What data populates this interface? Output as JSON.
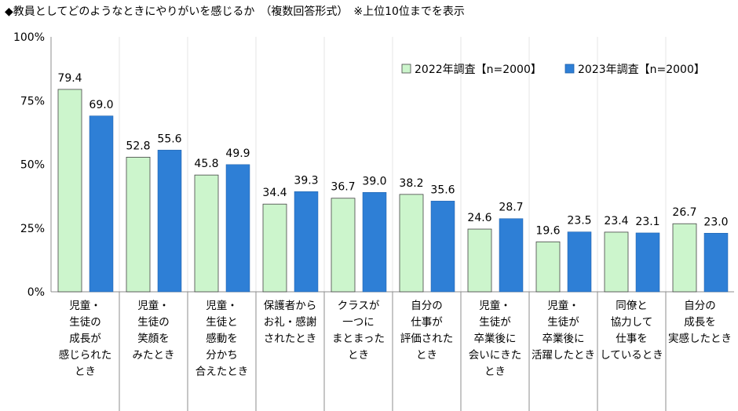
{
  "title": "◆教員としてどのようなときにやりがいを感じるか　（複数回答形式）　※上位10位までを表示",
  "chart_data": {
    "type": "bar",
    "title": "◆教員としてどのようなときにやりがいを感じるか　（複数回答形式）　※上位10位までを表示",
    "xlabel": "",
    "ylabel": "",
    "ylim": [
      0,
      100
    ],
    "yticks": [
      "0%",
      "25%",
      "50%",
      "75%",
      "100%"
    ],
    "ytick_values": [
      0,
      25,
      50,
      75,
      100
    ],
    "grid": "vertical separators only",
    "legend_position": "top-right",
    "categories": [
      "児童・\n生徒の\n成長が\n感じられた\nとき",
      "児童・\n生徒の\n笑顔を\nみたとき",
      "児童・\n生徒と\n感動を\n分かち\n合えたとき",
      "保護者から\nお礼・感謝\nされたとき",
      "クラスが\n一つに\nまとまった\nとき",
      "自分の\n仕事が\n評価された\nとき",
      "児童・\n生徒が\n卒業後に\n会いにきた\nとき",
      "児童・\n生徒が\n卒業後に\n活躍したとき",
      "同僚と\n協力して\n仕事を\nしているとき",
      "自分の\n成長を\n実感したとき"
    ],
    "series": [
      {
        "name": "2022年調査【n=2000】",
        "color": "#ccf5cc",
        "values": [
          79.4,
          52.8,
          45.8,
          34.4,
          36.7,
          38.2,
          24.6,
          19.6,
          23.4,
          26.7
        ]
      },
      {
        "name": "2023年調査【n=2000】",
        "color": "#2e7fd6",
        "values": [
          69.0,
          55.6,
          49.9,
          39.3,
          39.0,
          35.6,
          28.7,
          23.5,
          23.1,
          23.0
        ]
      }
    ]
  }
}
